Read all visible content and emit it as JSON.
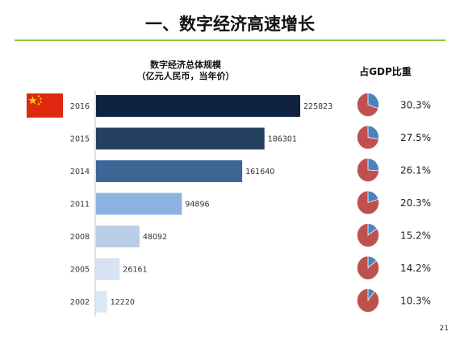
{
  "slide": {
    "title": "一、数字经济高速增长",
    "page_number": "21"
  },
  "chart_data": [
    {
      "type": "bar",
      "orientation": "horizontal",
      "title": "数字经济总体规模\n（亿元人民币，当年价）",
      "categories": [
        "2016",
        "2015",
        "2014",
        "2011",
        "2008",
        "2005",
        "2002"
      ],
      "values": [
        225823,
        186301,
        161640,
        94896,
        48092,
        26161,
        12220
      ],
      "colors": [
        "#0f2340",
        "#24405f",
        "#3d6595",
        "#8db2e2",
        "#b9cde6",
        "#d7e3f2",
        "#dce8f4"
      ],
      "grid": false,
      "legend": "none"
    },
    {
      "type": "pie",
      "title": "占GDP比重",
      "categories": [
        "2016",
        "2015",
        "2014",
        "2011",
        "2008",
        "2005",
        "2002"
      ],
      "values": [
        30.3,
        27.5,
        26.1,
        20.3,
        15.2,
        14.2,
        10.3
      ],
      "labels": [
        "30.3%",
        "27.5%",
        "26.1%",
        "20.3%",
        "15.2%",
        "14.2%",
        "10.3%"
      ],
      "colors": {
        "share": "#4f81bd",
        "rest": "#c0504d"
      }
    }
  ]
}
